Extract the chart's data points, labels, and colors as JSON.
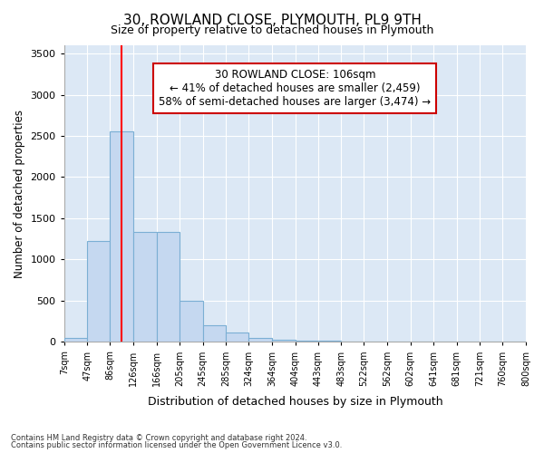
{
  "title": "30, ROWLAND CLOSE, PLYMOUTH, PL9 9TH",
  "subtitle": "Size of property relative to detached houses in Plymouth",
  "xlabel": "Distribution of detached houses by size in Plymouth",
  "ylabel": "Number of detached properties",
  "footnote1": "Contains HM Land Registry data © Crown copyright and database right 2024.",
  "footnote2": "Contains public sector information licensed under the Open Government Licence v3.0.",
  "bar_color": "#c5d8f0",
  "bar_edge_color": "#7bafd4",
  "background_color": "#dce8f5",
  "fig_background_color": "#ffffff",
  "grid_color": "#ffffff",
  "red_line_x": 106,
  "annotation_text": "30 ROWLAND CLOSE: 106sqm\n← 41% of detached houses are smaller (2,459)\n58% of semi-detached houses are larger (3,474) →",
  "annotation_box_color": "#ffffff",
  "annotation_box_edge_color": "#cc0000",
  "bin_edges": [
    7,
    47,
    86,
    126,
    166,
    205,
    245,
    285,
    324,
    364,
    404,
    443,
    483,
    522,
    562,
    602,
    641,
    681,
    721,
    760,
    800
  ],
  "bin_heights": [
    50,
    1220,
    2560,
    1330,
    1330,
    500,
    200,
    110,
    50,
    30,
    20,
    10,
    5,
    3,
    2,
    1,
    0,
    0,
    0,
    0
  ],
  "ylim": [
    0,
    3600
  ],
  "yticks": [
    0,
    500,
    1000,
    1500,
    2000,
    2500,
    3000,
    3500
  ],
  "tick_labels": [
    "7sqm",
    "47sqm",
    "86sqm",
    "126sqm",
    "166sqm",
    "205sqm",
    "245sqm",
    "285sqm",
    "324sqm",
    "364sqm",
    "404sqm",
    "443sqm",
    "483sqm",
    "522sqm",
    "562sqm",
    "602sqm",
    "641sqm",
    "681sqm",
    "721sqm",
    "760sqm",
    "800sqm"
  ]
}
